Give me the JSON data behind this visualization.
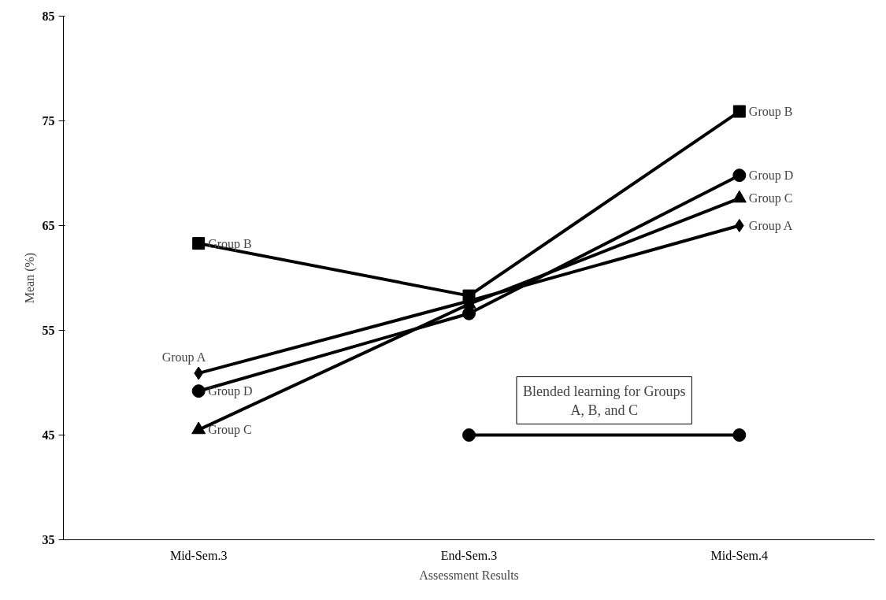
{
  "chart_data": {
    "type": "line",
    "xlabel": "Assessment Results",
    "ylabel": "Mean (%)",
    "categories": [
      "Mid-Sem.3",
      "End-Sem.3",
      "Mid-Sem.4"
    ],
    "ylim": [
      35,
      85
    ],
    "yticks": [
      35,
      45,
      55,
      65,
      75,
      85
    ],
    "grid": false,
    "line_style": "solid",
    "series": [
      {
        "name": "Group A",
        "color": "#000000",
        "marker": "diamond",
        "values": [
          50.9,
          57.8,
          65.0
        ]
      },
      {
        "name": "Group B",
        "color": "#000000",
        "marker": "square",
        "values": [
          63.3,
          58.3,
          75.9
        ]
      },
      {
        "name": "Group C",
        "color": "#000000",
        "marker": "triangle",
        "values": [
          45.5,
          57.5,
          67.6
        ]
      },
      {
        "name": "Group D",
        "color": "#000000",
        "marker": "circle",
        "values": [
          49.2,
          56.6,
          69.8
        ]
      },
      {
        "color": "#000000",
        "marker": "circle",
        "values": [
          null,
          45,
          45
        ]
      }
    ],
    "annotations": [
      "Blended learning for Groups\nA, B, and C"
    ]
  }
}
